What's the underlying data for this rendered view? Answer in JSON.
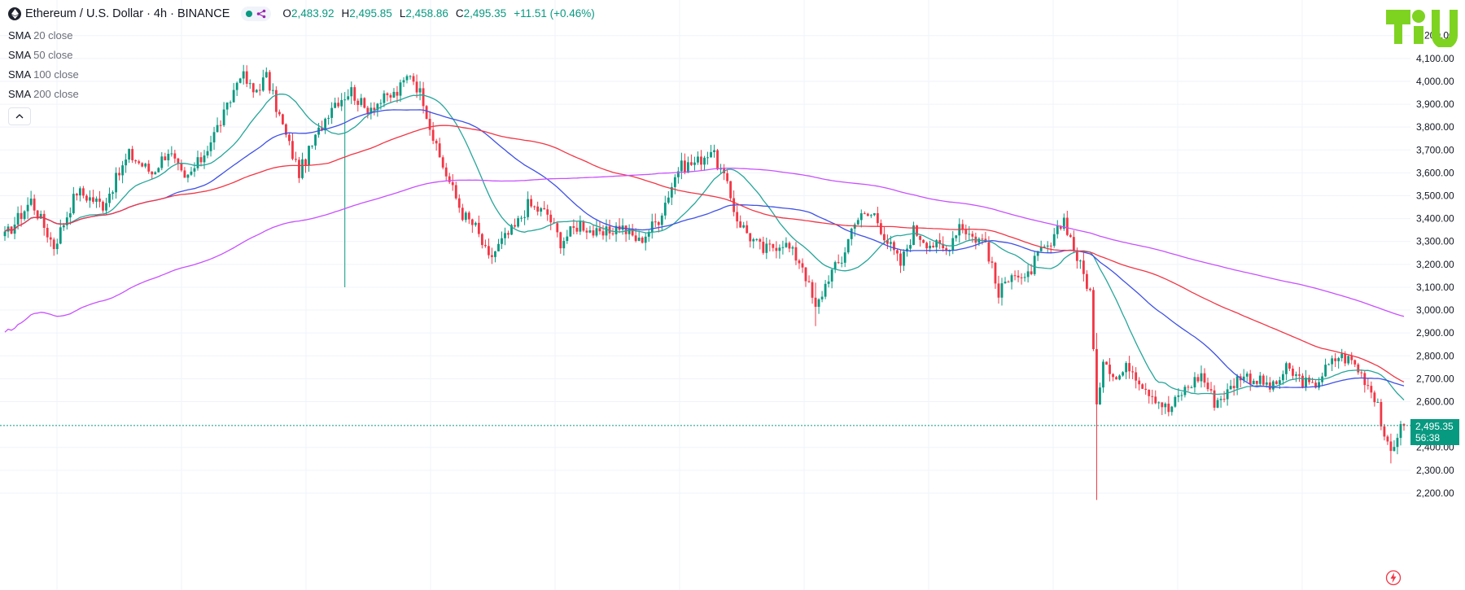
{
  "header": {
    "title": "Ethereum / U.S. Dollar · 4h · BINANCE",
    "ohlc": [
      {
        "k": "O",
        "v": "2,483.92"
      },
      {
        "k": "H",
        "v": "2,495.85"
      },
      {
        "k": "L",
        "v": "2,458.86"
      },
      {
        "k": "C",
        "v": "2,495.35"
      }
    ],
    "change": "+11.51 (+0.46%)"
  },
  "indicators": [
    {
      "name": "SMA",
      "param": "20 close",
      "color": "#26a69a"
    },
    {
      "name": "SMA",
      "param": "50 close",
      "color": "#3f51e5"
    },
    {
      "name": "SMA",
      "param": "100 close",
      "color": "#f23645"
    },
    {
      "name": "SMA",
      "param": "200 close",
      "color": "#c850ff"
    }
  ],
  "last_price": {
    "price": "2,495.35",
    "countdown": "56:38",
    "value": 2495.35
  },
  "colors": {
    "up": "#089981",
    "down": "#f23645",
    "grid": "#f0f3fa",
    "brand": "#7ed321"
  },
  "chart_data": {
    "type": "candlestick",
    "symbol": "Ethereum / U.S. Dollar",
    "interval": "4h",
    "exchange": "BINANCE",
    "ylim": [
      2150,
      4320
    ],
    "y_ticks": [
      {
        "v": 2200,
        "label": "2,200.00"
      },
      {
        "v": 2300,
        "label": "2,300.00"
      },
      {
        "v": 2400,
        "label": "2,400.00"
      },
      {
        "v": 2600,
        "label": "2,600.00"
      },
      {
        "v": 2700,
        "label": "2,700.00"
      },
      {
        "v": 2800,
        "label": "2,800.00"
      },
      {
        "v": 2900,
        "label": "2,900.00"
      },
      {
        "v": 3000,
        "label": "3,000.00"
      },
      {
        "v": 3100,
        "label": "3,100.00"
      },
      {
        "v": 3200,
        "label": "3,200.00"
      },
      {
        "v": 3300,
        "label": "3,300.00"
      },
      {
        "v": 3400,
        "label": "3,400.00"
      },
      {
        "v": 3500,
        "label": "3,500.00"
      },
      {
        "v": 3600,
        "label": "3,600.00"
      },
      {
        "v": 3700,
        "label": "3,700.00"
      },
      {
        "v": 3800,
        "label": "3,800.00"
      },
      {
        "v": 3900,
        "label": "3,900.00"
      },
      {
        "v": 4000,
        "label": "4,000.00"
      },
      {
        "v": 4100,
        "label": "4,100.00"
      },
      {
        "v": 4200,
        "label": "4,200.00"
      }
    ],
    "price_path": [
      [
        0,
        3320
      ],
      [
        8,
        3480
      ],
      [
        15,
        3280
      ],
      [
        22,
        3520
      ],
      [
        30,
        3460
      ],
      [
        38,
        3680
      ],
      [
        45,
        3600
      ],
      [
        50,
        3700
      ],
      [
        55,
        3560
      ],
      [
        60,
        3660
      ],
      [
        68,
        3880
      ],
      [
        72,
        4040
      ],
      [
        76,
        3950
      ],
      [
        80,
        4020
      ],
      [
        86,
        3760
      ],
      [
        90,
        3600
      ],
      [
        94,
        3720
      ],
      [
        100,
        3900
      ],
      [
        106,
        3960
      ],
      [
        110,
        3880
      ],
      [
        116,
        3920
      ],
      [
        120,
        3950
      ],
      [
        124,
        4040
      ],
      [
        128,
        3920
      ],
      [
        132,
        3700
      ],
      [
        136,
        3560
      ],
      [
        140,
        3420
      ],
      [
        144,
        3360
      ],
      [
        148,
        3220
      ],
      [
        152,
        3300
      ],
      [
        156,
        3360
      ],
      [
        160,
        3460
      ],
      [
        166,
        3420
      ],
      [
        170,
        3300
      ],
      [
        176,
        3380
      ],
      [
        182,
        3320
      ],
      [
        188,
        3370
      ],
      [
        194,
        3300
      ],
      [
        200,
        3400
      ],
      [
        206,
        3620
      ],
      [
        212,
        3650
      ],
      [
        216,
        3700
      ],
      [
        220,
        3580
      ],
      [
        224,
        3400
      ],
      [
        228,
        3320
      ],
      [
        232,
        3260
      ],
      [
        238,
        3300
      ],
      [
        244,
        3200
      ],
      [
        248,
        3000
      ],
      [
        252,
        3150
      ],
      [
        256,
        3220
      ],
      [
        260,
        3400
      ],
      [
        266,
        3420
      ],
      [
        270,
        3300
      ],
      [
        274,
        3200
      ],
      [
        278,
        3350
      ],
      [
        282,
        3300
      ],
      [
        288,
        3260
      ],
      [
        292,
        3380
      ],
      [
        296,
        3320
      ],
      [
        300,
        3300
      ],
      [
        304,
        3060
      ],
      [
        308,
        3180
      ],
      [
        312,
        3120
      ],
      [
        316,
        3240
      ],
      [
        320,
        3280
      ],
      [
        324,
        3400
      ],
      [
        328,
        3230
      ],
      [
        332,
        3080
      ],
      [
        334,
        2560
      ],
      [
        336,
        2800
      ],
      [
        340,
        2700
      ],
      [
        344,
        2760
      ],
      [
        348,
        2680
      ],
      [
        352,
        2620
      ],
      [
        356,
        2560
      ],
      [
        360,
        2640
      ],
      [
        366,
        2720
      ],
      [
        370,
        2600
      ],
      [
        374,
        2640
      ],
      [
        378,
        2720
      ],
      [
        382,
        2700
      ],
      [
        388,
        2660
      ],
      [
        392,
        2740
      ],
      [
        396,
        2700
      ],
      [
        400,
        2660
      ],
      [
        404,
        2740
      ],
      [
        408,
        2800
      ],
      [
        412,
        2780
      ],
      [
        416,
        2700
      ],
      [
        420,
        2600
      ],
      [
        422,
        2420
      ],
      [
        424,
        2380
      ],
      [
        426,
        2460
      ],
      [
        428,
        2495.35
      ]
    ],
    "wicks": [
      {
        "i": 104,
        "low": 3100,
        "high": 3700
      },
      {
        "i": 248,
        "low": 2930,
        "high": 3120
      },
      {
        "i": 334,
        "low": 2170,
        "high": 2900
      },
      {
        "i": 424,
        "low": 2330,
        "high": 2460
      }
    ],
    "seed": 17
  }
}
